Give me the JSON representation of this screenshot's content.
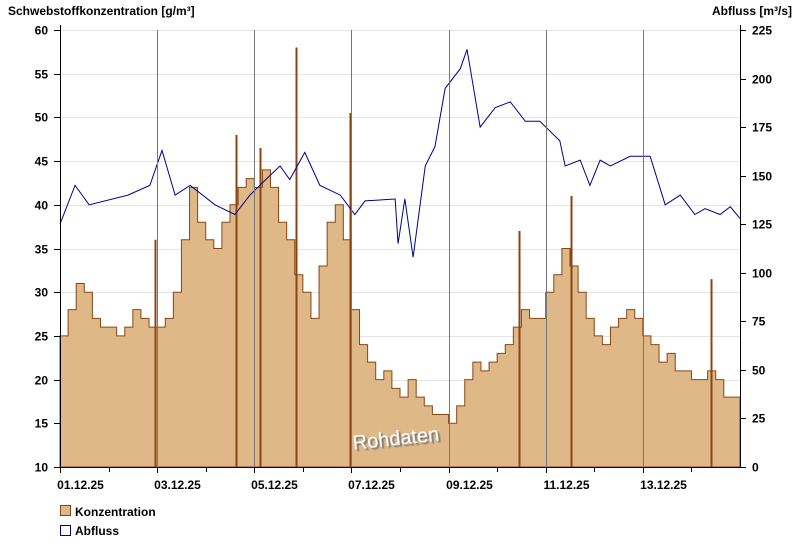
{
  "chart_data": {
    "type": "area+line",
    "left_axis": {
      "label": "Schwebstoffkonzentration [g/m³]",
      "range": [
        10,
        60
      ],
      "ticks": [
        "10",
        "15",
        "20",
        "25",
        "30",
        "35",
        "40",
        "45",
        "50",
        "55",
        "60"
      ]
    },
    "right_axis": {
      "label": "Abfluss [m³/s]",
      "range": [
        0,
        225
      ],
      "ticks": [
        "0",
        "25",
        "50",
        "75",
        "100",
        "125",
        "150",
        "175",
        "200",
        "225"
      ]
    },
    "x_axis": {
      "range_days": [
        0,
        14
      ],
      "tick_labels": [
        "01.12.25",
        "03.12.25",
        "05.12.25",
        "07.12.25",
        "09.12.25",
        "11.12.25",
        "13.12.25"
      ],
      "tick_days": [
        0,
        2,
        4,
        6,
        8,
        10,
        12
      ]
    },
    "annotation": "Rohdaten",
    "legend": {
      "placement": "bottom-left",
      "items": [
        {
          "label": "Konzentration",
          "fill": "#deb887",
          "stroke": "#8b4513"
        },
        {
          "label": "Abfluss",
          "fill": "#ffffff",
          "stroke": "#00008b"
        }
      ]
    },
    "series": [
      {
        "name": "Konzentration",
        "axis": "left",
        "step_hours": 4,
        "values": [
          25,
          28,
          31,
          30,
          27,
          26,
          26,
          25,
          26,
          28,
          27,
          26,
          26,
          27,
          30,
          36,
          42,
          38,
          36,
          35,
          38,
          40,
          42,
          43,
          42,
          44,
          42,
          38,
          36,
          32,
          30,
          27,
          33,
          38,
          40,
          36,
          28,
          24,
          22,
          20,
          21,
          19,
          18,
          20,
          18,
          17,
          16,
          16,
          15,
          17,
          20,
          22,
          21,
          22,
          23,
          24,
          26,
          28,
          27,
          27,
          30,
          32,
          35,
          33,
          30,
          27,
          25,
          24,
          26,
          27,
          28,
          27,
          25,
          24,
          22,
          23,
          21,
          21,
          20,
          20,
          21,
          20,
          18,
          18
        ],
        "spikes": [
          {
            "day": 1.95,
            "value": 36
          },
          {
            "day": 3.62,
            "value": 48
          },
          {
            "day": 4.11,
            "value": 46.5
          },
          {
            "day": 4.86,
            "value": 58
          },
          {
            "day": 5.97,
            "value": 50.5
          },
          {
            "day": 9.45,
            "value": 37
          },
          {
            "day": 10.52,
            "value": 41
          },
          {
            "day": 13.4,
            "value": 31.5
          }
        ]
      },
      {
        "name": "Abfluss",
        "axis": "right",
        "points": [
          [
            0,
            125
          ],
          [
            0.31,
            145
          ],
          [
            0.6,
            135
          ],
          [
            1.4,
            140
          ],
          [
            1.85,
            145
          ],
          [
            2.1,
            163
          ],
          [
            2.37,
            140
          ],
          [
            2.68,
            145
          ],
          [
            3.19,
            135
          ],
          [
            3.6,
            130
          ],
          [
            3.91,
            140
          ],
          [
            4.32,
            150
          ],
          [
            4.53,
            155
          ],
          [
            4.73,
            148
          ],
          [
            5.04,
            162
          ],
          [
            5.35,
            145
          ],
          [
            5.77,
            140
          ],
          [
            6.07,
            130
          ],
          [
            6.28,
            137
          ],
          [
            6.9,
            138
          ],
          [
            6.96,
            115
          ],
          [
            7.1,
            138
          ],
          [
            7.27,
            108
          ],
          [
            7.52,
            155
          ],
          [
            7.72,
            165
          ],
          [
            7.93,
            195
          ],
          [
            8.24,
            205
          ],
          [
            8.38,
            215
          ],
          [
            8.65,
            175
          ],
          [
            8.96,
            185
          ],
          [
            9.27,
            188
          ],
          [
            9.58,
            178
          ],
          [
            9.88,
            178
          ],
          [
            10.29,
            168
          ],
          [
            10.4,
            155
          ],
          [
            10.71,
            158
          ],
          [
            10.91,
            145
          ],
          [
            11.12,
            158
          ],
          [
            11.33,
            155
          ],
          [
            11.74,
            160
          ],
          [
            12.15,
            160
          ],
          [
            12.46,
            135
          ],
          [
            12.77,
            140
          ],
          [
            13.07,
            130
          ],
          [
            13.28,
            133
          ],
          [
            13.59,
            130
          ],
          [
            13.8,
            134
          ],
          [
            14,
            128
          ]
        ]
      }
    ]
  }
}
